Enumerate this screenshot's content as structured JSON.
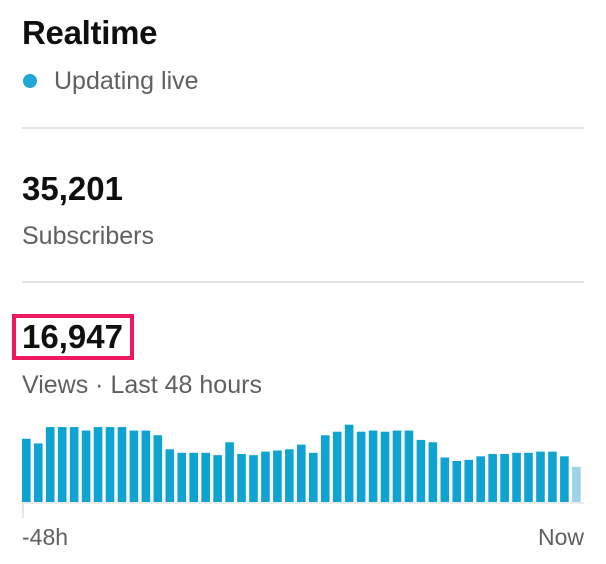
{
  "header": {
    "title": "Realtime",
    "status_text": "Updating live",
    "status_color": "#20a8d8"
  },
  "subscribers": {
    "value": "35,201",
    "label": "Subscribers"
  },
  "views": {
    "value": "16,947",
    "label": "Views · Last 48 hours",
    "highlight_color": "#f0195f"
  },
  "chart_data": {
    "type": "bar",
    "bar_color": "#0fa3d1",
    "current_bar_color": "#9fd3e8",
    "x_start_label": "-48h",
    "x_end_label": "Now",
    "values": [
      54,
      50,
      64,
      64,
      64,
      61,
      64,
      64,
      64,
      61,
      61,
      57,
      45,
      42,
      42,
      42,
      40,
      51,
      41,
      40,
      43,
      44,
      45,
      49,
      42,
      57,
      60,
      66,
      60,
      61,
      60,
      61,
      61,
      53,
      51,
      38,
      35,
      36,
      39,
      41,
      41,
      42,
      42,
      43,
      43,
      39,
      30
    ],
    "ylim": [
      0,
      70
    ]
  }
}
